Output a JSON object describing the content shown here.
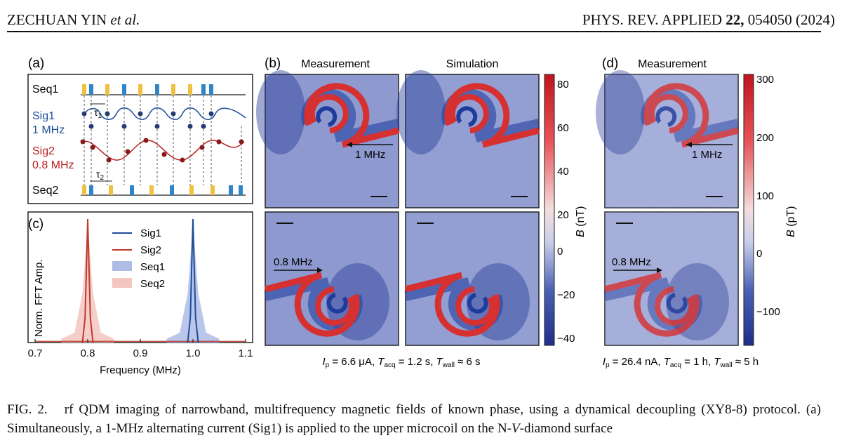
{
  "header": {
    "author": "ZECHUAN YIN",
    "etal": "et al.",
    "journal": "PHYS. REV. APPLIED",
    "volume": "22,",
    "article_year": "054050 (2024)"
  },
  "panel_a": {
    "label": "(a)",
    "seq1": "Seq1",
    "sig1": "Sig1",
    "sig1_freq": "1 MHz",
    "tau1": "τ",
    "tau1_sub": "1",
    "sig2": "Sig2",
    "sig2_freq": "0.8 MHz",
    "tau2": "τ",
    "tau2_sub": "2",
    "seq2": "Seq2",
    "colors": {
      "yellow": "#f0c040",
      "blue": "#2e86c8",
      "sig1": "#1f4e9a",
      "sig2": "#b82020"
    }
  },
  "panel_b": {
    "label": "(b)",
    "col1_title": "Measurement",
    "col2_title": "Simulation",
    "arrow_top": "1 MHz",
    "arrow_bottom": "0.8 MHz",
    "params": {
      "ip": "I",
      "ip_sub": "p",
      "ip_val": " = 6.6 μA, ",
      "tacq": "T",
      "tacq_sub": "acq",
      "tacq_val": " = 1.2 s, ",
      "twall": "T",
      "twall_sub": "wall",
      "twall_val": " ≈ 6 s"
    },
    "colorbar": {
      "label": "B",
      "unit": " (nT)",
      "ticks": [
        "80",
        "60",
        "40",
        "20",
        "0",
        "−20",
        "−40"
      ]
    }
  },
  "panel_c": {
    "label": "(c)",
    "ylabel": "Norm. FFT Amp.",
    "xlabel": "Frequency (MHz)",
    "legend": [
      "Sig1",
      "Sig2",
      "Seq1",
      "Seq2"
    ]
  },
  "panel_d": {
    "label": "(d)",
    "title": "Measurement",
    "arrow_top": "1 MHz",
    "arrow_bottom": "0.8 MHz",
    "params": {
      "ip": "I",
      "ip_sub": "p",
      "ip_val": " = 26.4 nA, ",
      "tacq": "T",
      "tacq_sub": "acq",
      "tacq_val": " = 1 h, ",
      "twall": "T",
      "twall_sub": "wall",
      "twall_val": " ≈ 5 h"
    },
    "colorbar": {
      "label": "B",
      "unit": " (pT)",
      "ticks": [
        "300",
        "200",
        "100",
        "0",
        "−100"
      ]
    }
  },
  "chart_data": {
    "type": "line",
    "xlabel": "Frequency (MHz)",
    "ylabel": "Norm. FFT Amp.",
    "xlim": [
      0.7,
      1.1
    ],
    "ylim": [
      0,
      1
    ],
    "xticks": [
      "0.7",
      "0.8",
      "0.9",
      "1.0",
      "1.1"
    ],
    "series": [
      {
        "name": "Sig1",
        "kind": "line",
        "color": "#1f4e9a",
        "x": [
          0.99,
          0.995,
          1.0,
          1.005,
          1.01
        ],
        "y": [
          0.0,
          0.2,
          1.0,
          0.2,
          0.0
        ]
      },
      {
        "name": "Sig2",
        "kind": "line",
        "color": "#c0392b",
        "x": [
          0.79,
          0.795,
          0.8,
          0.805,
          0.81
        ],
        "y": [
          0.0,
          0.2,
          1.0,
          0.2,
          0.0
        ]
      },
      {
        "name": "Seq1",
        "kind": "area",
        "color": "#aebde6",
        "x": [
          0.95,
          0.975,
          0.99,
          1.0,
          1.01,
          1.025,
          1.05
        ],
        "y": [
          0.03,
          0.08,
          0.4,
          0.97,
          0.4,
          0.08,
          0.03
        ]
      },
      {
        "name": "Seq2",
        "kind": "area",
        "color": "#f3c6c0",
        "x": [
          0.75,
          0.775,
          0.79,
          0.8,
          0.81,
          0.825,
          0.85
        ],
        "y": [
          0.03,
          0.08,
          0.4,
          0.97,
          0.4,
          0.08,
          0.03
        ]
      }
    ],
    "legend_position": "top-right"
  },
  "caption": {
    "fig": "FIG. 2.",
    "text1": "rf QDM imaging of narrowband, multifrequency magnetic fields of known phase, using a dynamical decoupling (XY8-8) protocol. (a) Simultaneously, a 1-MHz alternating current (Sig1) is applied to the upper microcoil on the N-",
    "italicV": "V",
    "text2": "-diamond surface"
  }
}
